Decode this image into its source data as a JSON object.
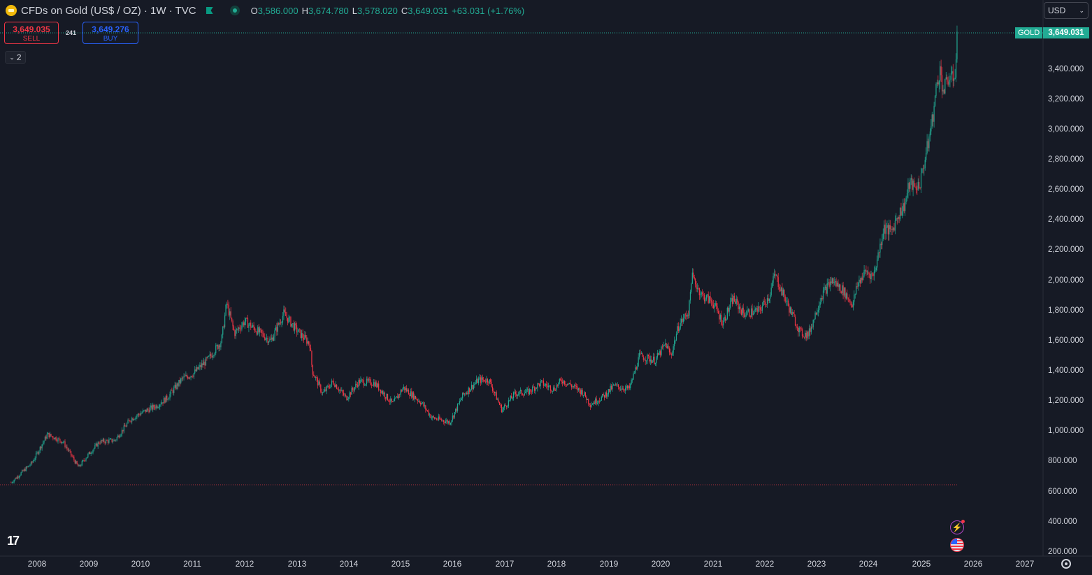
{
  "header": {
    "title": "CFDs on Gold (US$ / OZ) · 1W · TVC",
    "ohlc": [
      {
        "k": "O",
        "v": "3,586.000"
      },
      {
        "k": "H",
        "v": "3,674.780"
      },
      {
        "k": "L",
        "v": "3,578.020"
      },
      {
        "k": "C",
        "v": "3,649.031"
      }
    ],
    "change": "+63.031 (+1.76%)"
  },
  "trade": {
    "sell_price": "3,649.035",
    "sell_label": "SELL",
    "spread": "241",
    "buy_price": "3,649.276",
    "buy_label": "BUY"
  },
  "collapse_label": "2",
  "currency": {
    "value": "USD"
  },
  "price_scale": {
    "symbol": "GOLD",
    "last_price": "3,649.031",
    "ticks": [
      "3,400.000",
      "3,200.000",
      "3,000.000",
      "2,800.000",
      "2,600.000",
      "2,400.000",
      "2,200.000",
      "2,000.000",
      "1,800.000",
      "1,600.000",
      "1,400.000",
      "1,200.000",
      "1,000.000",
      "800.000",
      "600.000",
      "400.000",
      "200.000"
    ]
  },
  "time_scale": {
    "ticks": [
      "2008",
      "2009",
      "2010",
      "2011",
      "2012",
      "2013",
      "2014",
      "2015",
      "2016",
      "2017",
      "2018",
      "2019",
      "2020",
      "2021",
      "2022",
      "2023",
      "2024",
      "2025",
      "2026",
      "2027"
    ]
  },
  "colors": {
    "up": "#22ab94",
    "down": "#f23645",
    "bg": "#161a25",
    "accent": "#2962ff"
  },
  "icons": [
    "gold-symbol-icon",
    "flag-icon",
    "status-dot-icon",
    "chevron-down-icon",
    "tradingview-logo-icon",
    "bolt-icon",
    "us-flag-icon",
    "settings-icon"
  ],
  "chart_data": {
    "type": "candlestick",
    "interval": "1W",
    "ylim": [
      200,
      3700
    ],
    "xlim": [
      2007.5,
      2027.5
    ],
    "last_close": 3649.031,
    "low_line": 650,
    "series": [
      {
        "name": "CFDs on Gold (US$ / OZ)",
        "points": [
          [
            2007.5,
            660
          ],
          [
            2007.9,
            790
          ],
          [
            2008.2,
            980
          ],
          [
            2008.5,
            930
          ],
          [
            2008.8,
            760
          ],
          [
            2008.95,
            830
          ],
          [
            2009.2,
            930
          ],
          [
            2009.5,
            940
          ],
          [
            2009.8,
            1080
          ],
          [
            2010.0,
            1120
          ],
          [
            2010.3,
            1170
          ],
          [
            2010.5,
            1220
          ],
          [
            2010.8,
            1350
          ],
          [
            2011.0,
            1380
          ],
          [
            2011.3,
            1480
          ],
          [
            2011.55,
            1600
          ],
          [
            2011.65,
            1850
          ],
          [
            2011.8,
            1650
          ],
          [
            2012.0,
            1730
          ],
          [
            2012.3,
            1650
          ],
          [
            2012.5,
            1600
          ],
          [
            2012.75,
            1780
          ],
          [
            2013.0,
            1670
          ],
          [
            2013.25,
            1580
          ],
          [
            2013.3,
            1400
          ],
          [
            2013.5,
            1250
          ],
          [
            2013.7,
            1330
          ],
          [
            2013.95,
            1220
          ],
          [
            2014.2,
            1330
          ],
          [
            2014.5,
            1320
          ],
          [
            2014.85,
            1180
          ],
          [
            2015.05,
            1290
          ],
          [
            2015.4,
            1190
          ],
          [
            2015.6,
            1090
          ],
          [
            2015.95,
            1060
          ],
          [
            2016.2,
            1240
          ],
          [
            2016.5,
            1340
          ],
          [
            2016.7,
            1340
          ],
          [
            2016.95,
            1140
          ],
          [
            2017.2,
            1250
          ],
          [
            2017.45,
            1260
          ],
          [
            2017.7,
            1320
          ],
          [
            2017.95,
            1280
          ],
          [
            2018.1,
            1340
          ],
          [
            2018.5,
            1260
          ],
          [
            2018.65,
            1180
          ],
          [
            2018.9,
            1230
          ],
          [
            2019.1,
            1300
          ],
          [
            2019.4,
            1280
          ],
          [
            2019.6,
            1500
          ],
          [
            2019.9,
            1470
          ],
          [
            2020.1,
            1580
          ],
          [
            2020.2,
            1500
          ],
          [
            2020.35,
            1700
          ],
          [
            2020.55,
            1800
          ],
          [
            2020.6,
            2030
          ],
          [
            2020.8,
            1900
          ],
          [
            2021.0,
            1860
          ],
          [
            2021.2,
            1720
          ],
          [
            2021.4,
            1880
          ],
          [
            2021.6,
            1780
          ],
          [
            2021.9,
            1800
          ],
          [
            2022.1,
            1900
          ],
          [
            2022.2,
            2040
          ],
          [
            2022.5,
            1800
          ],
          [
            2022.7,
            1650
          ],
          [
            2022.85,
            1640
          ],
          [
            2023.1,
            1900
          ],
          [
            2023.3,
            2000
          ],
          [
            2023.5,
            1940
          ],
          [
            2023.7,
            1840
          ],
          [
            2023.8,
            1980
          ],
          [
            2023.95,
            2060
          ],
          [
            2024.1,
            2030
          ],
          [
            2024.2,
            2180
          ],
          [
            2024.3,
            2350
          ],
          [
            2024.45,
            2320
          ],
          [
            2024.55,
            2420
          ],
          [
            2024.7,
            2500
          ],
          [
            2024.8,
            2650
          ],
          [
            2024.9,
            2610
          ],
          [
            2025.0,
            2650
          ],
          [
            2025.15,
            2900
          ],
          [
            2025.25,
            3100
          ],
          [
            2025.32,
            3300
          ],
          [
            2025.38,
            3400
          ],
          [
            2025.45,
            3250
          ],
          [
            2025.55,
            3350
          ],
          [
            2025.62,
            3330
          ],
          [
            2025.68,
            3400
          ],
          [
            2025.72,
            3649
          ]
        ]
      }
    ]
  }
}
